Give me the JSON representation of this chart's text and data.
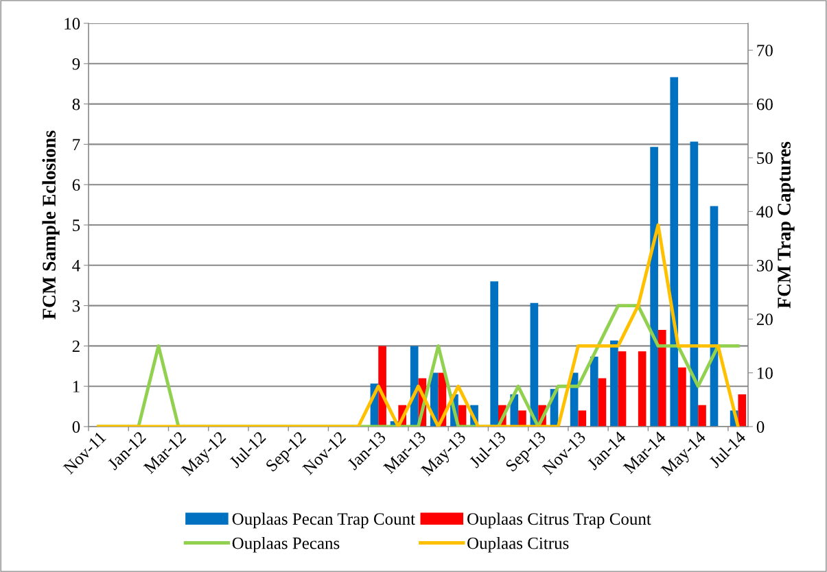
{
  "chart_data": {
    "type": "bar",
    "ylabel": "FCM Sample Eclosions",
    "y2label": "FCM Trap Captures",
    "categories": [
      "Nov-11",
      null,
      "Jan-12",
      null,
      "Mar-12",
      null,
      "May-12",
      null,
      "Jul-12",
      null,
      "Sep-12",
      null,
      "Nov-12",
      null,
      "Jan-13",
      null,
      "Mar-13",
      null,
      "May-13",
      null,
      "Jul-13",
      null,
      "Sep-13",
      null,
      "Nov-13",
      null,
      "Jan-14",
      null,
      "Mar-14",
      null,
      "May-14",
      null,
      "Jul-14"
    ],
    "series": [
      {
        "name": "Ouplaas Pecan Trap Count",
        "color": "#0070c0",
        "axis": "y2",
        "values": [
          null,
          null,
          null,
          null,
          null,
          null,
          null,
          null,
          null,
          null,
          null,
          null,
          null,
          null,
          8,
          1,
          15,
          10,
          6,
          4,
          27,
          6,
          23,
          7,
          10,
          13,
          16,
          null,
          52,
          65,
          53,
          41,
          3
        ]
      },
      {
        "name": "Ouplaas Citrus Trap Count",
        "color": "#ff0000",
        "axis": "y2",
        "values": [
          null,
          null,
          null,
          null,
          null,
          null,
          null,
          null,
          null,
          null,
          null,
          null,
          null,
          null,
          15,
          4,
          9,
          10,
          4,
          null,
          4,
          3,
          4,
          null,
          3,
          9,
          14,
          14,
          18,
          11,
          4,
          null,
          6
        ]
      },
      {
        "name": "Ouplaas Pecans",
        "color": "#92d050",
        "type": "line",
        "values": [
          0,
          0,
          0,
          2,
          0,
          0,
          0,
          0,
          0,
          0,
          0,
          0,
          0,
          0,
          0,
          0,
          0,
          2,
          0,
          0,
          0,
          1,
          0,
          1,
          1,
          2,
          3,
          3,
          2,
          2,
          1,
          2,
          2
        ]
      },
      {
        "name": "Ouplaas Citrus",
        "color": "#ffc000",
        "type": "line",
        "values": [
          0,
          0,
          0,
          0,
          0,
          0,
          0,
          0,
          0,
          0,
          0,
          0,
          0,
          0,
          1,
          0,
          1,
          0,
          1,
          0,
          0,
          0,
          0,
          0,
          2,
          2,
          2,
          3,
          5,
          2,
          2,
          2,
          0
        ]
      }
    ],
    "ylim": [
      0,
      10
    ],
    "yticks": [
      0,
      1,
      2,
      3,
      4,
      5,
      6,
      7,
      8,
      9,
      10
    ],
    "y2lim": [
      0,
      75
    ],
    "y2ticks": [
      0,
      10,
      20,
      30,
      40,
      50,
      60,
      70
    ],
    "grid": "y",
    "legend": "bottom",
    "marker": "none",
    "line_style": "solid"
  }
}
